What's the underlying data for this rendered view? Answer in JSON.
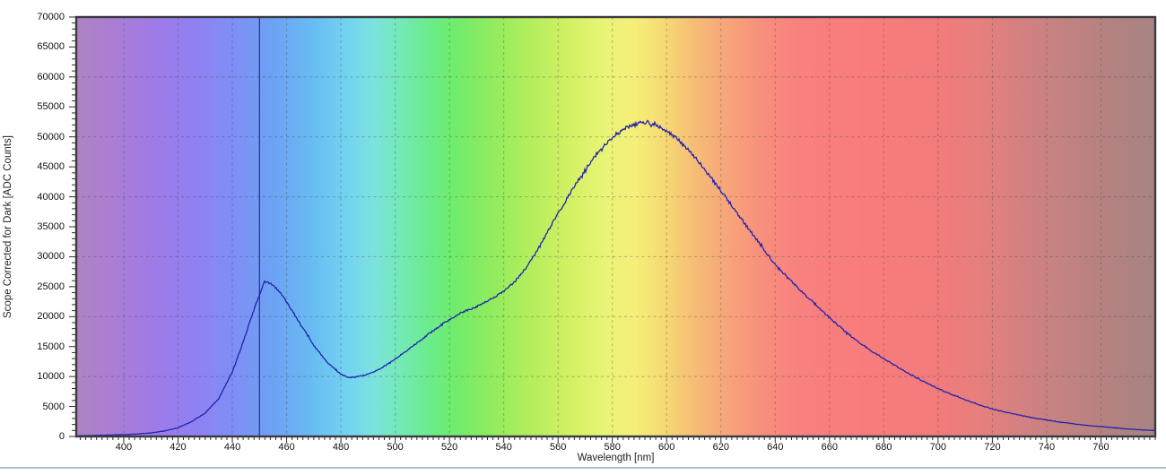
{
  "chart_data": {
    "type": "line",
    "xlabel": "Wavelength [nm]",
    "ylabel": "Scope Corrected for Dark [ADC Counts]",
    "xlim": [
      382.5,
      780
    ],
    "ylim": [
      0,
      70000
    ],
    "grid": {
      "x_step": 20,
      "y_step": 10000,
      "style": "dashed",
      "color": "rgba(70,70,70,0.38)"
    },
    "x_tick_labels": [
      400,
      420,
      440,
      460,
      480,
      500,
      520,
      540,
      560,
      580,
      600,
      620,
      640,
      660,
      680,
      700,
      720,
      740,
      760
    ],
    "x_minor_tick_step": 2,
    "y_tick_labels": [
      0,
      5000,
      10000,
      15000,
      20000,
      25000,
      30000,
      35000,
      40000,
      45000,
      50000,
      55000,
      60000,
      65000,
      70000
    ],
    "y_minor_tick_step": 1000,
    "legend": "none",
    "cursor_line": {
      "x": 450,
      "color": "#2B2B8A"
    },
    "series": [
      {
        "name": "spectrum-trace",
        "color": "#2222AC",
        "x": [
          382.5,
          390,
          400,
          405,
          410,
          415,
          420,
          425,
          430,
          435,
          440,
          443,
          446,
          449,
          452,
          455,
          458,
          461,
          465,
          470,
          475,
          480,
          483,
          486,
          490,
          495,
          500,
          505,
          510,
          515,
          520,
          524,
          528,
          532,
          536,
          540,
          544,
          548,
          552,
          556,
          560,
          565,
          570,
          575,
          580,
          585,
          590,
          593,
          596,
          600,
          605,
          610,
          615,
          620,
          625,
          630,
          635,
          640,
          645,
          650,
          655,
          660,
          665,
          670,
          675,
          680,
          685,
          690,
          695,
          700,
          705,
          710,
          715,
          720,
          725,
          730,
          735,
          740,
          745,
          750,
          755,
          760,
          765,
          770,
          775,
          780
        ],
        "y": [
          120,
          180,
          300,
          420,
          600,
          900,
          1450,
          2500,
          3900,
          6300,
          10800,
          14500,
          18500,
          22500,
          25900,
          25300,
          23800,
          21800,
          18800,
          15200,
          12300,
          10400,
          9800,
          9900,
          10400,
          11400,
          12900,
          14600,
          16300,
          18000,
          19500,
          20600,
          21300,
          22100,
          23100,
          24200,
          25800,
          28000,
          30800,
          34000,
          37200,
          41000,
          44500,
          47600,
          49900,
          51500,
          52300,
          52450,
          52100,
          51000,
          49200,
          46800,
          44000,
          41000,
          37900,
          34800,
          31700,
          28700,
          26300,
          24100,
          21900,
          19800,
          17800,
          16000,
          14400,
          13000,
          11600,
          10300,
          9100,
          8000,
          7000,
          6100,
          5300,
          4600,
          4050,
          3550,
          3100,
          2750,
          2400,
          2100,
          1850,
          1650,
          1450,
          1250,
          1100,
          1000
        ]
      }
    ],
    "annotations": {
      "blue_peak": {
        "x": 452,
        "y": 25900
      },
      "main_peak": {
        "x": 592,
        "y": 52400
      },
      "valley": {
        "x": 483,
        "y": 9800
      }
    },
    "background_gradient_stops": [
      {
        "nm": 382.5,
        "color": "#AC84C4"
      },
      {
        "nm": 395,
        "color": "#AB7ED2"
      },
      {
        "nm": 410,
        "color": "#A07BE6"
      },
      {
        "nm": 425,
        "color": "#9180F2"
      },
      {
        "nm": 440,
        "color": "#7E8EF6"
      },
      {
        "nm": 455,
        "color": "#6CA2F4"
      },
      {
        "nm": 470,
        "color": "#68BDF2"
      },
      {
        "nm": 483,
        "color": "#74D4F0"
      },
      {
        "nm": 492,
        "color": "#7CE2DE"
      },
      {
        "nm": 502,
        "color": "#74E9B6"
      },
      {
        "nm": 512,
        "color": "#6BEC8C"
      },
      {
        "nm": 522,
        "color": "#70EC6C"
      },
      {
        "nm": 535,
        "color": "#8FEC5E"
      },
      {
        "nm": 550,
        "color": "#B4EE5C"
      },
      {
        "nm": 565,
        "color": "#D4F164"
      },
      {
        "nm": 578,
        "color": "#EAF476"
      },
      {
        "nm": 588,
        "color": "#F5EF79"
      },
      {
        "nm": 598,
        "color": "#F6DC74"
      },
      {
        "nm": 610,
        "color": "#F6BE76"
      },
      {
        "nm": 622,
        "color": "#F7A57A"
      },
      {
        "nm": 635,
        "color": "#F88F7D"
      },
      {
        "nm": 650,
        "color": "#F8807E"
      },
      {
        "nm": 675,
        "color": "#F87C7C"
      },
      {
        "nm": 700,
        "color": "#F27B7B"
      },
      {
        "nm": 715,
        "color": "#E67F7E"
      },
      {
        "nm": 730,
        "color": "#D48180"
      },
      {
        "nm": 745,
        "color": "#C48281"
      },
      {
        "nm": 762,
        "color": "#B48281"
      },
      {
        "nm": 780,
        "color": "#A88384"
      }
    ]
  },
  "axis_style": {
    "border_color": "#3A3A40",
    "tick_color": "#2B2B2B",
    "label_color": "#111111"
  },
  "window": {
    "bottom_divider_color": "#AEBECF"
  }
}
